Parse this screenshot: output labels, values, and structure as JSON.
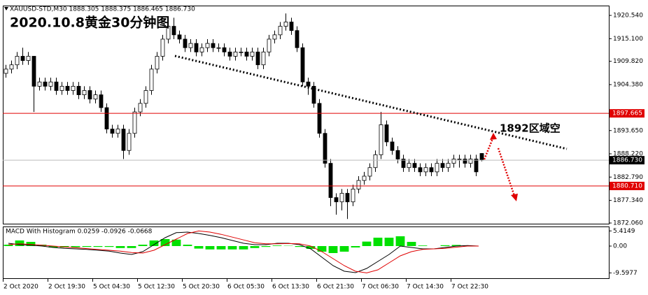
{
  "chart_data": {
    "type": "candlestick",
    "header": "XAUUSD-STD,M30 1888.305 1888.375 1886.465 1886.730",
    "title": "2020.10.8黄金30分钟图",
    "annotation": "1892区域空",
    "open": [
      1907,
      1908,
      1909,
      1911,
      1910,
      1911,
      1904,
      1905,
      1904,
      1905,
      1903,
      1904,
      1903,
      1904,
      1902,
      1903,
      1901,
      1902,
      1899,
      1894,
      1893,
      1894,
      1889,
      1893,
      1898,
      1900,
      1903,
      1908,
      1911,
      1915,
      1918,
      1916,
      1915,
      1913,
      1914,
      1912,
      1913,
      1914,
      1913,
      1913,
      1912,
      1911,
      1912,
      1912,
      1911,
      1912,
      1909,
      1912,
      1915,
      1916,
      1918,
      1919,
      1917,
      1913,
      1905,
      1904,
      1900,
      1893,
      1886,
      1878,
      1877,
      1879,
      1877,
      1880,
      1882,
      1883,
      1885,
      1888,
      1895,
      1891,
      1889,
      1887,
      1885,
      1886,
      1885,
      1884,
      1885,
      1884,
      1886,
      1885,
      1886,
      1887,
      1887,
      1886,
      1887,
      1888.305
    ],
    "high": [
      1909,
      1910,
      1912,
      1913,
      1912,
      1911,
      1906,
      1906,
      1906,
      1906,
      1905,
      1905,
      1905,
      1905,
      1904,
      1904,
      1903,
      1903,
      1900,
      1895,
      1895,
      1895,
      1894,
      1899,
      1901,
      1904,
      1909,
      1912,
      1916,
      1919,
      1920,
      1917,
      1916,
      1915,
      1915,
      1914,
      1915,
      1915,
      1914,
      1914,
      1913,
      1913,
      1913,
      1913,
      1913,
      1913,
      1913,
      1916,
      1917,
      1919,
      1921,
      1920,
      1918,
      1914,
      1906,
      1905,
      1901,
      1894,
      1887,
      1879,
      1880,
      1880,
      1881,
      1883,
      1884,
      1886,
      1889,
      1898,
      1896,
      1892,
      1890,
      1888,
      1887,
      1887,
      1886,
      1886,
      1886,
      1887,
      1887,
      1887,
      1888,
      1888,
      1888,
      1888,
      1888,
      1888.375
    ],
    "low": [
      1906,
      1907,
      1908,
      1909,
      1909,
      1898,
      1903,
      1903,
      1903,
      1902,
      1902,
      1902,
      1902,
      1901,
      1901,
      1900,
      1900,
      1898,
      1893,
      1892,
      1892,
      1887,
      1888,
      1892,
      1897,
      1899,
      1902,
      1907,
      1910,
      1914,
      1915,
      1914,
      1912,
      1912,
      1911,
      1911,
      1912,
      1912,
      1912,
      1911,
      1910,
      1910,
      1911,
      1910,
      1910,
      1908,
      1908,
      1911,
      1914,
      1915,
      1917,
      1916,
      1912,
      1904,
      1902,
      1899,
      1892,
      1885,
      1876,
      1874,
      1875,
      1873,
      1876,
      1879,
      1881,
      1882,
      1884,
      1887,
      1890,
      1888,
      1886,
      1884,
      1884,
      1884,
      1883,
      1883,
      1883,
      1883,
      1884,
      1884,
      1885,
      1885,
      1885,
      1885,
      1883,
      1886.465
    ],
    "close": [
      1908,
      1909,
      1911,
      1910,
      1911,
      1904,
      1905,
      1904,
      1905,
      1903,
      1904,
      1903,
      1904,
      1902,
      1903,
      1901,
      1902,
      1899,
      1894,
      1893,
      1894,
      1889,
      1893,
      1898,
      1900,
      1903,
      1908,
      1911,
      1915,
      1918,
      1916,
      1915,
      1913,
      1914,
      1912,
      1913,
      1914,
      1913,
      1913,
      1912,
      1911,
      1912,
      1912,
      1911,
      1912,
      1909,
      1912,
      1915,
      1916,
      1918,
      1919,
      1917,
      1913,
      1905,
      1904,
      1900,
      1893,
      1886,
      1878,
      1877,
      1879,
      1877,
      1880,
      1882,
      1883,
      1885,
      1888,
      1895,
      1891,
      1889,
      1887,
      1885,
      1886,
      1885,
      1884,
      1885,
      1884,
      1886,
      1885,
      1886,
      1887,
      1887,
      1886,
      1887,
      1884,
      1886.73
    ],
    "ylim": [
      1871.9,
      1922.83
    ],
    "yticks": [
      {
        "value": 1920.54,
        "label": "1920.540"
      },
      {
        "value": 1915.1,
        "label": "1915.100"
      },
      {
        "value": 1909.82,
        "label": "1909.820"
      },
      {
        "value": 1904.38,
        "label": "1904.380"
      },
      {
        "value": 1893.65,
        "label": "1893.650"
      },
      {
        "value": 1888.22,
        "label": "1888.220"
      },
      {
        "value": 1882.79,
        "label": "1882.790"
      },
      {
        "value": 1877.34,
        "label": "1877.340"
      },
      {
        "value": 1872.06,
        "label": "1872.060"
      }
    ],
    "price_lines": [
      {
        "value": 1897.665,
        "color": "#e00000"
      },
      {
        "value": {
          "value": 1886.73,
          "label": "1886.730"
        },
        "color": "#000000"
      },
      {
        "value": {
          "value": 1880.71,
          "label": "1880.710"
        },
        "color": "#e00000"
      }
    ],
    "x_labels": [
      "2 Oct 2020",
      "2 Oct 19:30",
      "5 Oct 04:30",
      "5 Oct 12:30",
      "5 Oct 20:30",
      "6 Oct 05:30",
      "6 Oct 13:30",
      "6 Oct 21:30",
      "7 Oct 06:30",
      "7 Oct 14:30",
      "7 Oct 22:30"
    ],
    "indicator": {
      "type": "macd",
      "title": "MACD With Histogram 0.0259 -0.0926 -0.0668",
      "macd": [
        1,
        0.5,
        0.3,
        0,
        -0.5,
        -0.8,
        -1,
        -1.2,
        -1.5,
        -1.8,
        -2.5,
        -3,
        -2,
        0.5,
        3,
        4.8,
        5,
        4.5,
        3.8,
        3,
        2,
        1,
        0.5,
        0.5,
        1,
        1,
        0.5,
        -1,
        -4,
        -7,
        -9,
        -9.5,
        -8,
        -5.5,
        -3,
        0,
        -0.5,
        -1,
        -1,
        -0.5,
        0,
        0.2,
        0
      ],
      "signal": [
        0.5,
        0.8,
        0.6,
        0.3,
        0,
        -0.3,
        -0.6,
        -0.9,
        -1.2,
        -1.5,
        -1.8,
        -2.3,
        -2.5,
        -1.5,
        0.5,
        2.5,
        4.5,
        5.4,
        5,
        4.2,
        3.2,
        2.2,
        1.2,
        0.8,
        0.8,
        0.9,
        0.8,
        0,
        -2,
        -4.5,
        -7,
        -9,
        -9.6,
        -8.5,
        -6,
        -3.5,
        -2,
        -1.2,
        -1,
        -0.8,
        -0.4,
        0,
        0
      ],
      "histogram": [
        0.5,
        2,
        1.5,
        0.5,
        -0.5,
        -0.5,
        -0.4,
        -0.3,
        -0.3,
        -0.3,
        -0.7,
        -0.7,
        0.5,
        2,
        2.5,
        2.3,
        0.5,
        -0.9,
        -1.2,
        -1.2,
        -1.2,
        -1.2,
        -0.7,
        -0.3,
        0.2,
        0.1,
        -0.3,
        -1,
        -2,
        -2.5,
        -2,
        -0.5,
        1.6,
        3,
        3,
        3.5,
        1.5,
        0.2,
        0,
        0.3,
        0.4,
        0.2,
        0
      ],
      "macd_color": "#000000",
      "signal_color": "#e00000",
      "histogram_color": "#00e000",
      "ylim": [
        -11.5,
        6.75
      ],
      "yticks": [
        5.4149,
        {
          "value": 0,
          "label": "0.00"
        },
        -9.5977
      ]
    }
  }
}
